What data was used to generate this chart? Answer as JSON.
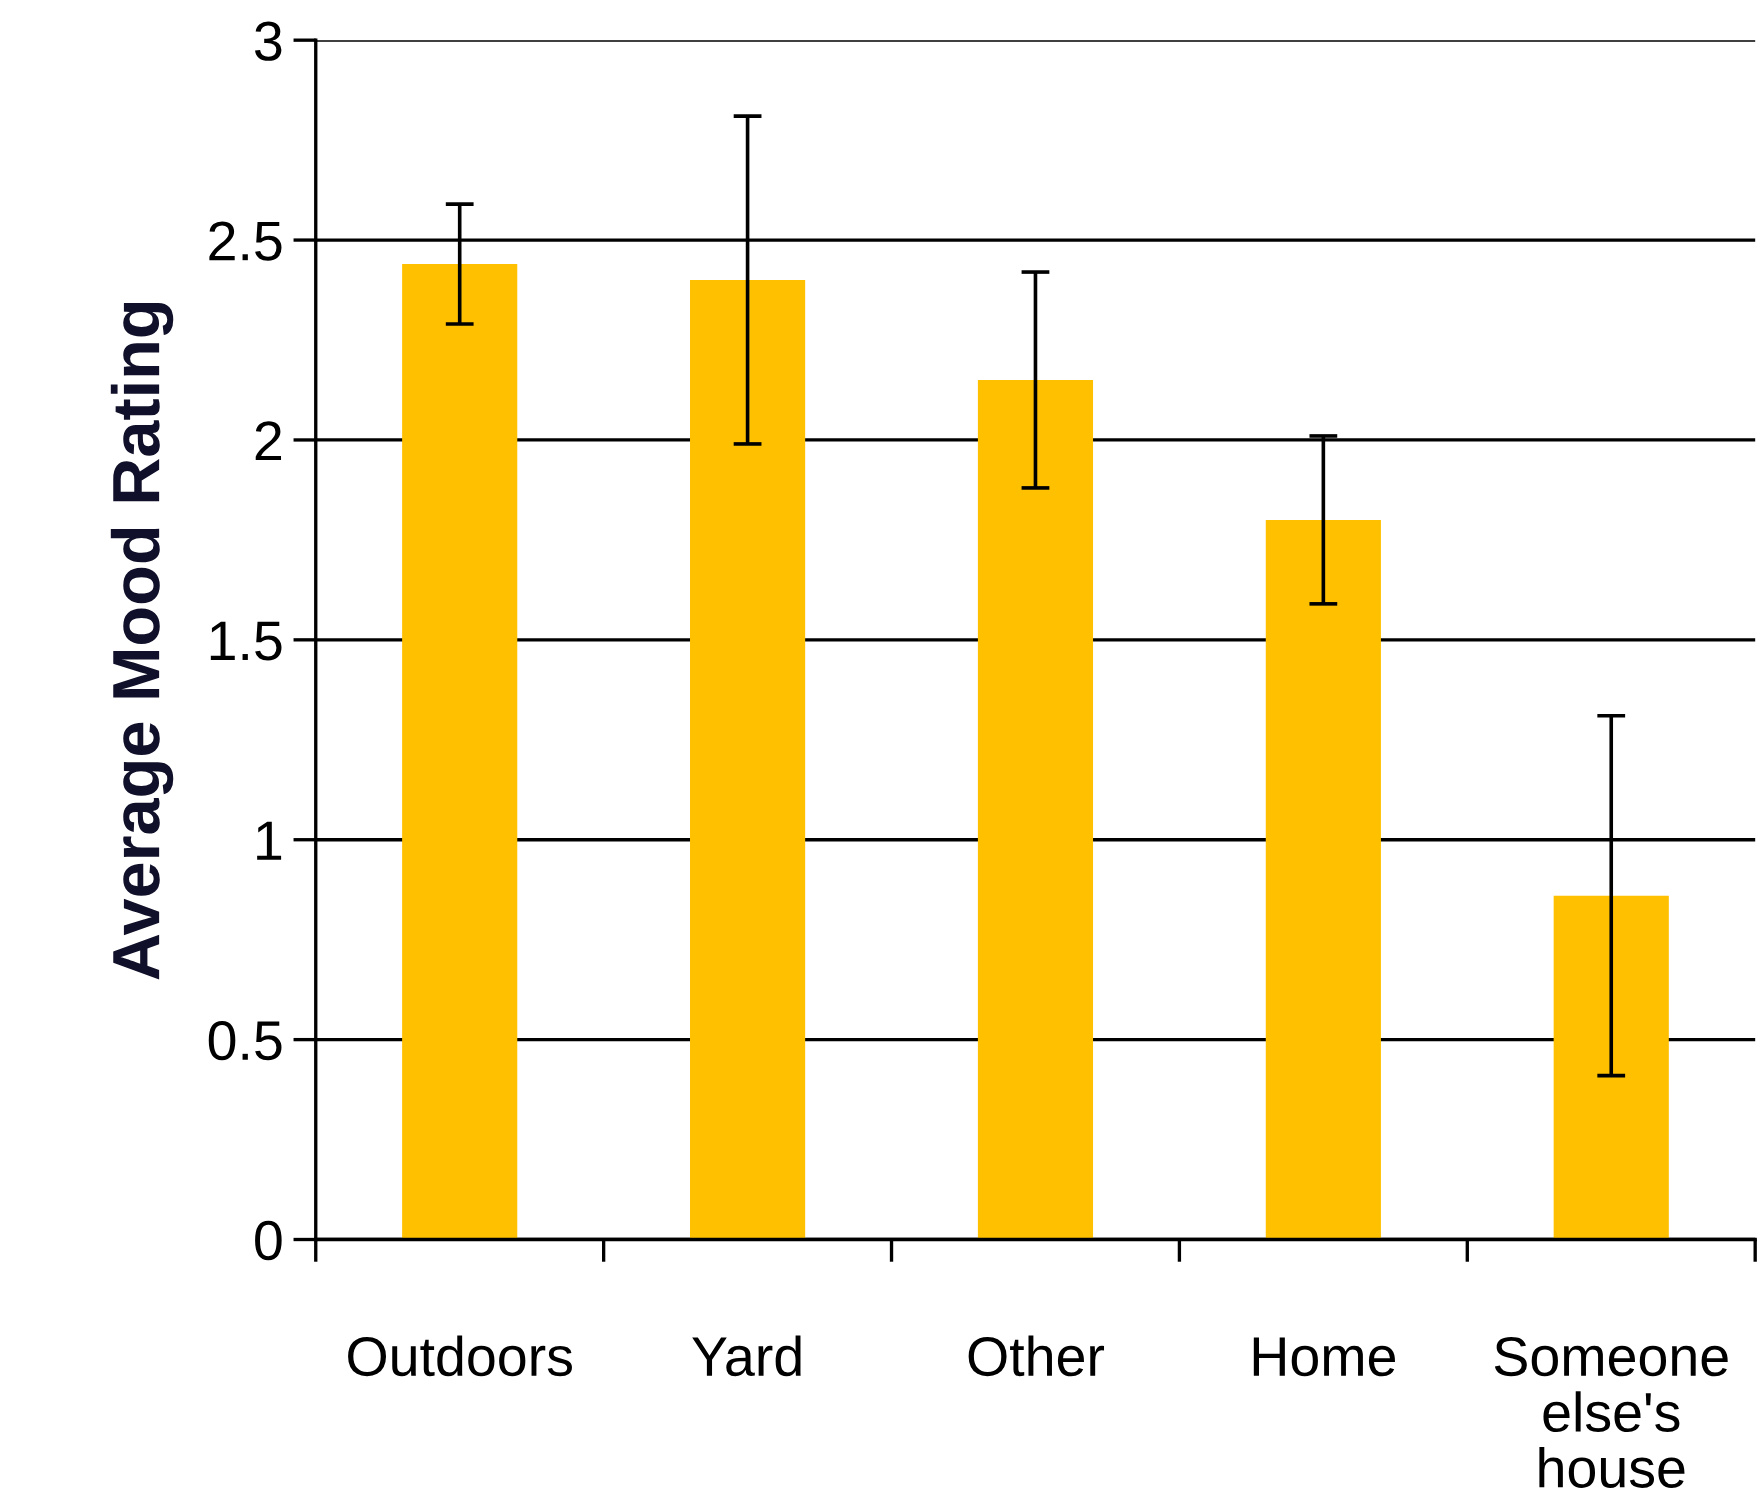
{
  "chart_data": {
    "type": "bar",
    "ylabel": "Average Mood Rating",
    "categories": [
      "Outdoors",
      "Yard",
      "Other",
      "Home",
      "Someone else's house"
    ],
    "values": [
      2.44,
      2.4,
      2.15,
      1.8,
      0.86
    ],
    "errors": [
      0.15,
      0.41,
      0.27,
      0.21,
      0.45
    ],
    "color": "#ffc000",
    "ylim": [
      0,
      3
    ],
    "yticks": [
      0,
      0.5,
      1,
      1.5,
      2,
      2.5,
      3
    ],
    "grid": "y",
    "legend": false
  }
}
